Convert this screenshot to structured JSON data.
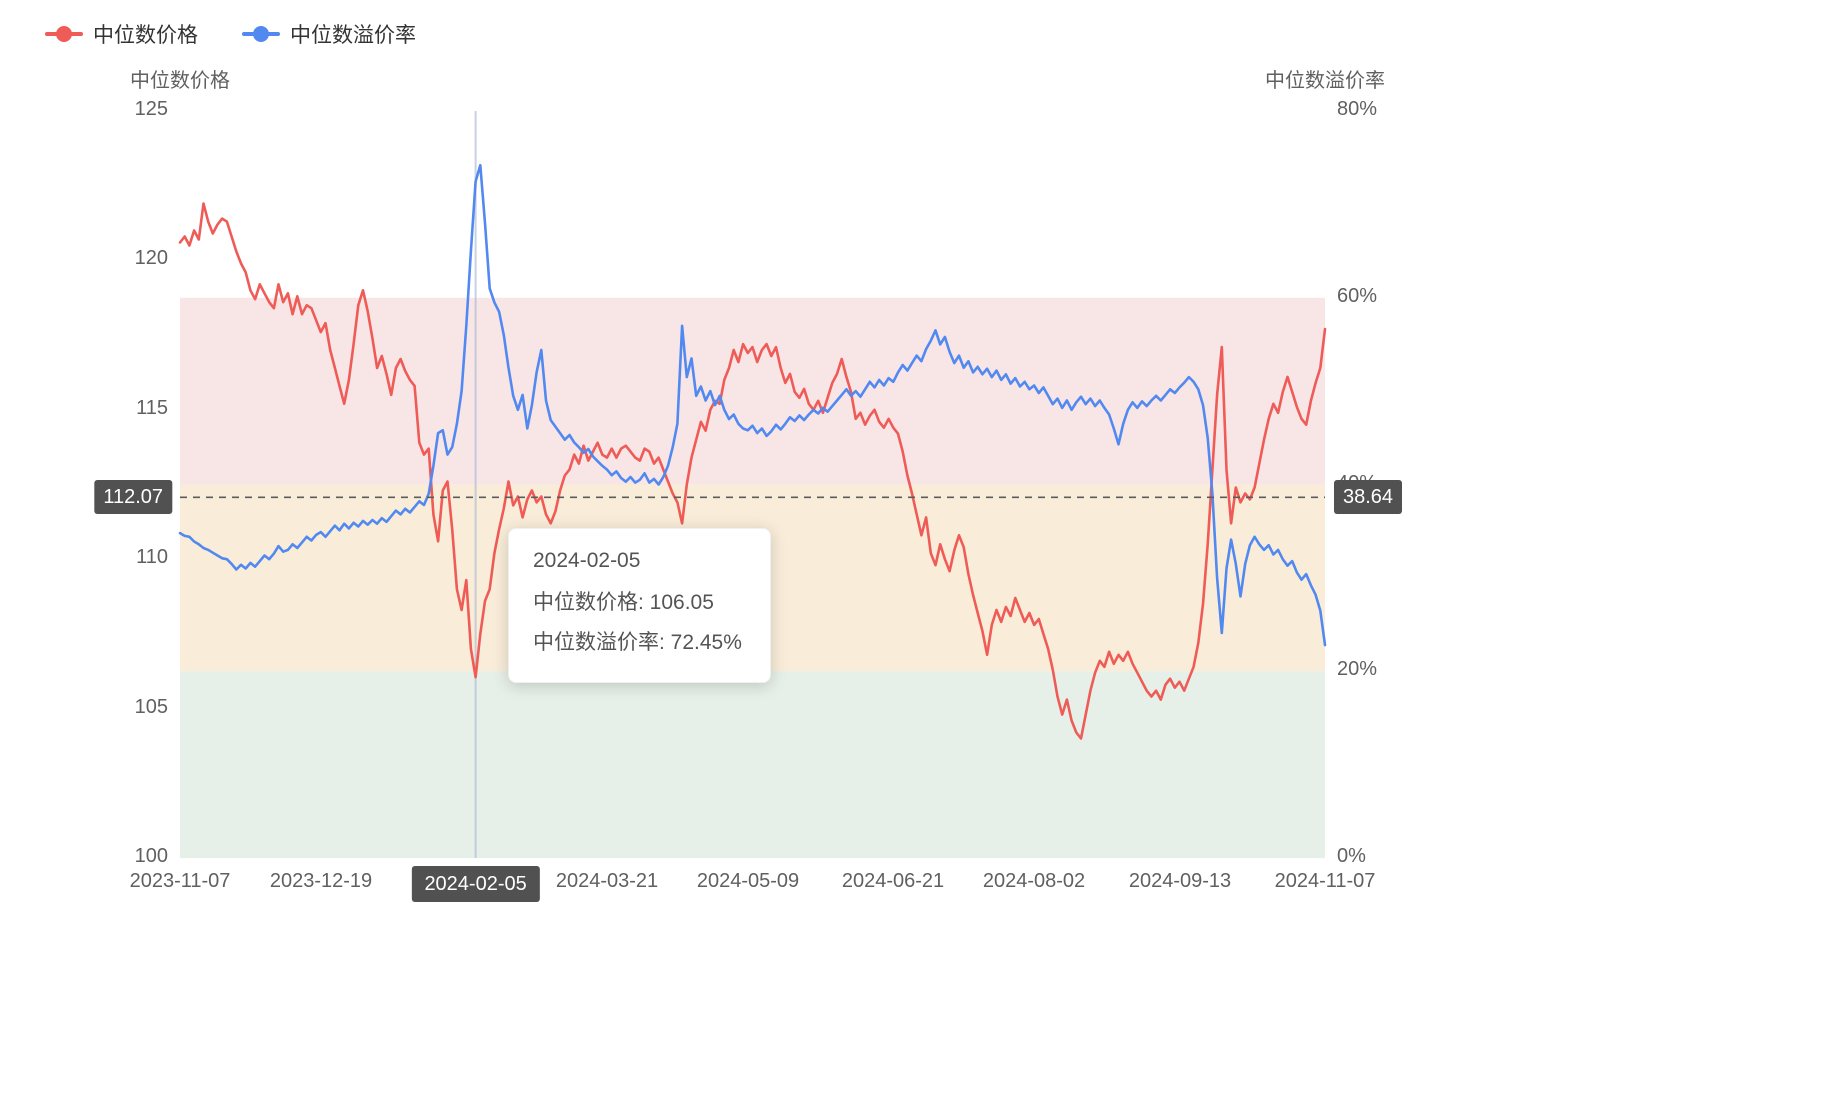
{
  "page": {
    "background": "#ffffff"
  },
  "legend": {
    "items": [
      {
        "label": "中位数价格",
        "color": "#ef5b56"
      },
      {
        "label": "中位数溢价率",
        "color": "#5289f0"
      }
    ]
  },
  "chart_data": {
    "type": "line",
    "x_axis": {
      "kind": "trading-day-index",
      "min_index": 0,
      "max_index": 244,
      "ticks": [
        {
          "index": 0,
          "label": "2023-11-07"
        },
        {
          "index": 30,
          "label": "2023-12-19"
        },
        {
          "index": 91,
          "label": "2024-03-21"
        },
        {
          "index": 121,
          "label": "2024-05-09"
        },
        {
          "index": 152,
          "label": "2024-06-21"
        },
        {
          "index": 182,
          "label": "2024-08-02"
        },
        {
          "index": 213,
          "label": "2024-09-13"
        },
        {
          "index": 244,
          "label": "2024-11-07"
        }
      ]
    },
    "y_axis_left": {
      "name": "中位数价格",
      "min": 100,
      "max": 125,
      "ticks": [
        {
          "value": 125,
          "label": "125"
        },
        {
          "value": 120,
          "label": "120"
        },
        {
          "value": 115,
          "label": "115"
        },
        {
          "value": 110,
          "label": "110"
        },
        {
          "value": 105,
          "label": "105"
        },
        {
          "value": 100,
          "label": "100"
        }
      ]
    },
    "y_axis_right": {
      "name": "中位数溢价率",
      "min": 0,
      "max": 80,
      "ticks": [
        {
          "value": 80,
          "label": "80%"
        },
        {
          "value": 60,
          "label": "60%"
        },
        {
          "value": 40,
          "label": "40%"
        },
        {
          "value": 20,
          "label": "20%"
        },
        {
          "value": 0,
          "label": "0%"
        }
      ]
    },
    "bands": [
      {
        "name": "upper",
        "axis": "right",
        "from": 40,
        "to": 60,
        "color": "#f8e6e7"
      },
      {
        "name": "middle",
        "axis": "right",
        "from": 20,
        "to": 40,
        "color": "#f9edd9"
      },
      {
        "name": "lower",
        "axis": "right",
        "from": 0,
        "to": 20,
        "color": "#e7f0e8"
      }
    ],
    "reference_line": {
      "price_value": 112.07,
      "premium_value": 38.64,
      "left_label": "112.07",
      "right_label": "38.64"
    },
    "axis_pointer": {
      "index": 63,
      "label": "2024-02-05"
    },
    "tooltip": {
      "date": "2024-02-05",
      "price": 106.05,
      "premium_rate_pct": 72.45,
      "rows": [
        "中位数价格: 106.05",
        "中位数溢价率: 72.45%"
      ]
    },
    "colors": {
      "price_line": "#ef5b56",
      "premium_line": "#5289f0",
      "pointer_line": "rgba(165,180,210,0.6)",
      "reference_line": "#5c5c5c",
      "badge_bg": "#515151",
      "tick_text": "#606060",
      "legend_text": "#333333"
    },
    "series": [
      {
        "name": "中位数价格",
        "axis": "left",
        "color": "#ef5b56",
        "values": [
          120.6,
          120.8,
          120.5,
          121.0,
          120.7,
          121.9,
          121.3,
          120.9,
          121.2,
          121.4,
          121.3,
          120.8,
          120.3,
          119.9,
          119.6,
          119.0,
          118.7,
          119.2,
          118.9,
          118.6,
          118.4,
          119.2,
          118.6,
          118.9,
          118.2,
          118.8,
          118.2,
          118.5,
          118.4,
          118.0,
          117.6,
          117.9,
          117.0,
          116.4,
          115.8,
          115.2,
          116.0,
          117.2,
          118.5,
          119.0,
          118.3,
          117.4,
          116.4,
          116.8,
          116.2,
          115.5,
          116.4,
          116.7,
          116.3,
          116.0,
          115.8,
          113.9,
          113.5,
          113.7,
          111.5,
          110.6,
          112.3,
          112.6,
          111.0,
          109.0,
          108.3,
          109.3,
          107.0,
          106.05,
          107.5,
          108.6,
          109.0,
          110.2,
          111.0,
          111.7,
          112.6,
          111.8,
          112.1,
          111.4,
          112.0,
          112.3,
          111.9,
          112.1,
          111.5,
          111.2,
          111.6,
          112.3,
          112.8,
          113.0,
          113.5,
          113.2,
          113.8,
          113.3,
          113.6,
          113.9,
          113.5,
          113.4,
          113.7,
          113.4,
          113.7,
          113.8,
          113.6,
          113.4,
          113.3,
          113.7,
          113.6,
          113.2,
          113.4,
          113.0,
          112.6,
          112.2,
          111.9,
          111.2,
          112.5,
          113.4,
          114.0,
          114.6,
          114.3,
          115.0,
          115.3,
          115.2,
          116.0,
          116.4,
          117.0,
          116.6,
          117.2,
          116.9,
          117.1,
          116.6,
          117.0,
          117.2,
          116.8,
          117.1,
          116.4,
          115.9,
          116.2,
          115.6,
          115.4,
          115.7,
          115.2,
          115.0,
          115.3,
          114.9,
          115.4,
          115.9,
          116.2,
          116.7,
          116.1,
          115.6,
          114.7,
          114.9,
          114.5,
          114.8,
          115.0,
          114.6,
          114.4,
          114.7,
          114.4,
          114.2,
          113.6,
          112.8,
          112.2,
          111.5,
          110.8,
          111.4,
          110.2,
          109.8,
          110.5,
          110.0,
          109.6,
          110.3,
          110.8,
          110.4,
          109.5,
          108.8,
          108.2,
          107.6,
          106.8,
          107.8,
          108.3,
          107.9,
          108.4,
          108.1,
          108.7,
          108.3,
          107.9,
          108.2,
          107.8,
          108.0,
          107.5,
          107.0,
          106.3,
          105.4,
          104.8,
          105.3,
          104.6,
          104.2,
          104.0,
          104.8,
          105.6,
          106.2,
          106.6,
          106.4,
          106.9,
          106.5,
          106.8,
          106.6,
          106.9,
          106.5,
          106.2,
          105.9,
          105.6,
          105.4,
          105.6,
          105.3,
          105.8,
          106.0,
          105.7,
          105.9,
          105.6,
          106.0,
          106.4,
          107.2,
          108.5,
          110.5,
          113.0,
          115.5,
          117.1,
          113.0,
          111.2,
          112.4,
          111.9,
          112.2,
          112.0,
          112.4,
          113.2,
          114.0,
          114.7,
          115.2,
          114.9,
          115.6,
          116.1,
          115.6,
          115.1,
          114.7,
          114.5,
          115.3,
          115.9,
          116.4,
          117.7
        ]
      },
      {
        "name": "中位数溢价率",
        "axis": "right",
        "color": "#5289f0",
        "values": [
          34.8,
          34.5,
          34.4,
          33.9,
          33.6,
          33.2,
          33.0,
          32.7,
          32.4,
          32.1,
          32.0,
          31.5,
          30.9,
          31.4,
          31.0,
          31.6,
          31.2,
          31.8,
          32.4,
          32.0,
          32.6,
          33.4,
          32.8,
          33.0,
          33.6,
          33.2,
          33.8,
          34.4,
          34.0,
          34.6,
          34.9,
          34.4,
          35.0,
          35.6,
          35.1,
          35.8,
          35.3,
          35.9,
          35.5,
          36.1,
          35.7,
          36.2,
          35.8,
          36.4,
          36.0,
          36.6,
          37.2,
          36.8,
          37.4,
          37.0,
          37.6,
          38.2,
          37.8,
          39.0,
          42.0,
          45.5,
          45.8,
          43.2,
          44.0,
          46.5,
          50.0,
          57.0,
          65.0,
          72.45,
          74.2,
          68.0,
          61.0,
          59.5,
          58.5,
          56.0,
          52.5,
          49.5,
          48.0,
          49.6,
          46.0,
          48.5,
          52.0,
          54.4,
          49.0,
          46.9,
          46.2,
          45.5,
          44.8,
          45.3,
          44.5,
          44.0,
          43.4,
          43.8,
          43.0,
          42.5,
          42.0,
          41.6,
          41.0,
          41.4,
          40.7,
          40.3,
          40.8,
          40.2,
          40.5,
          41.2,
          40.2,
          40.6,
          40.0,
          40.8,
          42.0,
          44.0,
          46.5,
          57.0,
          51.5,
          53.5,
          49.5,
          50.5,
          49.0,
          50.0,
          48.5,
          49.5,
          48.0,
          47.0,
          47.5,
          46.5,
          46.0,
          45.8,
          46.3,
          45.5,
          46.0,
          45.2,
          45.7,
          46.4,
          45.9,
          46.5,
          47.2,
          46.8,
          47.4,
          46.9,
          47.5,
          48.0,
          47.6,
          48.2,
          47.8,
          48.4,
          49.0,
          49.6,
          50.2,
          49.5,
          50.0,
          49.4,
          50.2,
          51.0,
          50.4,
          51.2,
          50.6,
          51.4,
          51.0,
          52.0,
          52.8,
          52.2,
          53.0,
          53.8,
          53.2,
          54.5,
          55.4,
          56.5,
          55.0,
          55.8,
          54.2,
          53.0,
          53.8,
          52.5,
          53.2,
          52.0,
          52.6,
          51.8,
          52.4,
          51.5,
          52.2,
          51.2,
          51.8,
          50.8,
          51.4,
          50.5,
          51.0,
          50.2,
          50.6,
          49.8,
          50.4,
          49.5,
          48.6,
          49.2,
          48.2,
          49.0,
          48.0,
          48.8,
          49.4,
          48.6,
          49.2,
          48.4,
          49.0,
          48.2,
          47.5,
          46.0,
          44.3,
          46.5,
          48.0,
          48.8,
          48.2,
          48.9,
          48.4,
          49.0,
          49.5,
          49.0,
          49.6,
          50.2,
          49.8,
          50.4,
          50.9,
          51.5,
          51.0,
          50.2,
          48.5,
          45.0,
          39.0,
          30.0,
          24.1,
          31.0,
          34.1,
          31.5,
          28.0,
          31.5,
          33.5,
          34.4,
          33.6,
          33.0,
          33.5,
          32.5,
          33.0,
          32.0,
          31.3,
          31.8,
          30.6,
          29.8,
          30.4,
          29.2,
          28.2,
          26.5,
          22.8
        ]
      }
    ]
  }
}
